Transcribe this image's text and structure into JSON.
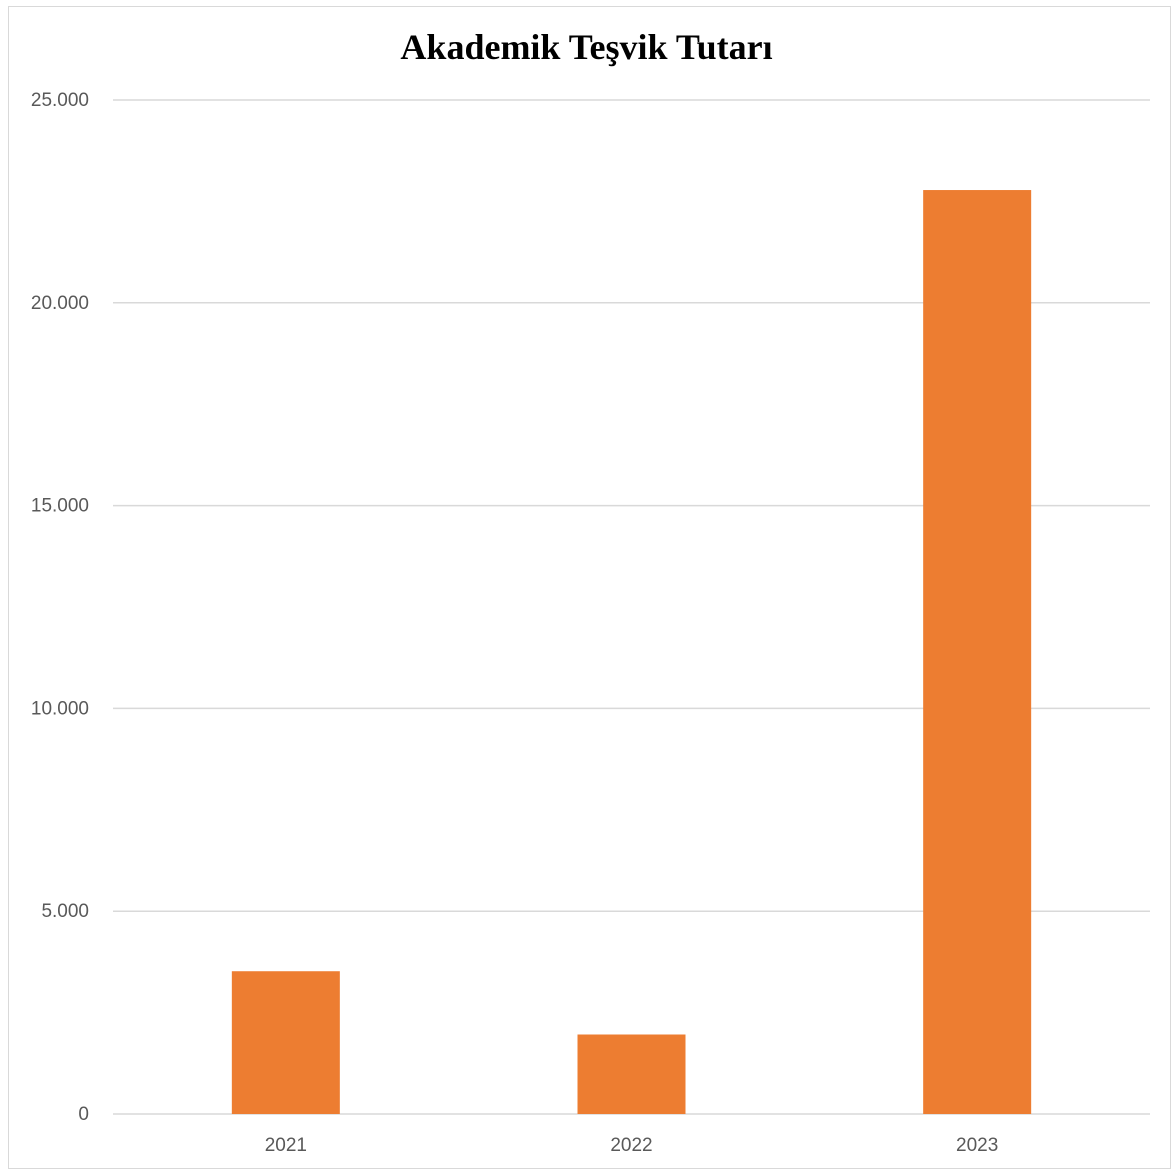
{
  "chart_data": {
    "type": "bar",
    "title": "Akademik Teşvik Tutarı",
    "categories": [
      "2021",
      "2022",
      "2023"
    ],
    "values": [
      3520,
      1960,
      22780
    ],
    "ylim": [
      0,
      25000
    ],
    "yticks": [
      0,
      5000,
      10000,
      15000,
      20000,
      25000
    ],
    "ytick_labels": [
      "0",
      "5.000",
      "10.000",
      "15.000",
      "20.000",
      "25.000"
    ],
    "grid": true,
    "legend": "none",
    "bar_color": "#ED7D31",
    "grid_color": "#d9d9d9"
  }
}
